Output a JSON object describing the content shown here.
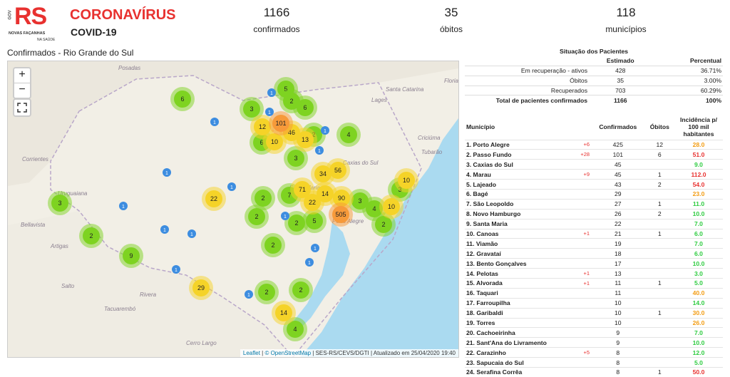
{
  "header": {
    "logo": {
      "gov": "GOV",
      "rs": "RS",
      "line1": "NOVAS FAÇANHAS",
      "line2": "NA SAÚDE"
    },
    "title": "CORONAVÍRUS",
    "subtitle": "COVID-19",
    "stats": [
      {
        "value": "1166",
        "label": "confirmados"
      },
      {
        "value": "35",
        "label": "óbitos"
      },
      {
        "value": "118",
        "label": "municípios"
      }
    ]
  },
  "map": {
    "title": "Confirmados - Rio Grande do Sul",
    "zoom_in": "+",
    "zoom_out": "−",
    "places": [
      "Posadas",
      "Santa Catarina",
      "Lages",
      "Florianópolis",
      "Criciúma",
      "Tubarão",
      "Corrientes",
      "Uruguaiana",
      "Bellavista",
      "Artigas",
      "Salto",
      "Rivera",
      "Tacuarembó",
      "Cerro Largo",
      "Caxias do Sul",
      "Santa Maria",
      "Porto Alegre"
    ],
    "clusters": [
      "6",
      "5",
      "2",
      "6",
      "3",
      "4",
      "2",
      "6",
      "3",
      "3",
      "2",
      "7",
      "2",
      "2",
      "5",
      "3",
      "4",
      "2",
      "3",
      "2",
      "9",
      "2",
      "2",
      "2",
      "4",
      "12",
      "46",
      "10",
      "13",
      "34",
      "56",
      "22",
      "71",
      "14",
      "90",
      "22",
      "10",
      "10",
      "29",
      "14",
      "101",
      "505",
      "1",
      "1",
      "1",
      "1",
      "1",
      "1",
      "1",
      "1",
      "1",
      "1",
      "1",
      "1",
      "1",
      "1",
      "1"
    ],
    "attribution": {
      "leaflet": "Leaflet",
      "osm": "© OpenStreetMap",
      "source": "SES-RS/CEVS/DGTI | Atualizado em 25/04/2020 19:40"
    }
  },
  "summary": {
    "title": "Situação dos Pacientes",
    "columns": [
      "Estimado",
      "Percentual"
    ],
    "rows": [
      [
        "Em recuperação - ativos",
        "428",
        "36.71%"
      ],
      [
        "Óbitos",
        "35",
        "3.00%"
      ],
      [
        "Recuperados",
        "703",
        "60.29%"
      ],
      [
        "Total de pacientes confirmados",
        "1166",
        "100%"
      ]
    ]
  },
  "municipalities": {
    "columns": [
      "Município",
      "Confirmados",
      "Óbitos",
      "Incidência p/ 100 mil habitantes"
    ],
    "rows": [
      {
        "name": "1. Porto Alegre",
        "new": "+6",
        "confirmed": "425",
        "deaths": "12",
        "incidence": "28.0",
        "color": "#f39c12"
      },
      {
        "name": "2. Passo Fundo",
        "new": "+28",
        "confirmed": "101",
        "deaths": "6",
        "incidence": "51.0",
        "color": "#e8312f"
      },
      {
        "name": "3. Caxias do Sul",
        "confirmed": "45",
        "incidence": "9.0",
        "color": "#2ecc40"
      },
      {
        "name": "4. Marau",
        "new": "+9",
        "confirmed": "45",
        "deaths": "1",
        "incidence": "112.0",
        "color": "#e8312f"
      },
      {
        "name": "5. Lajeado",
        "confirmed": "43",
        "deaths": "2",
        "incidence": "54.0",
        "color": "#e8312f"
      },
      {
        "name": "6. Bagé",
        "confirmed": "29",
        "incidence": "23.0",
        "color": "#f39c12"
      },
      {
        "name": "7. São Leopoldo",
        "confirmed": "27",
        "deaths": "1",
        "incidence": "11.0",
        "color": "#2ecc40"
      },
      {
        "name": "8. Novo Hamburgo",
        "confirmed": "26",
        "deaths": "2",
        "incidence": "10.0",
        "color": "#2ecc40"
      },
      {
        "name": "9. Santa Maria",
        "confirmed": "22",
        "incidence": "7.0",
        "color": "#2ecc40"
      },
      {
        "name": "10. Canoas",
        "new": "+1",
        "confirmed": "21",
        "deaths": "1",
        "incidence": "6.0",
        "color": "#2ecc40"
      },
      {
        "name": "11. Viamão",
        "confirmed": "19",
        "incidence": "7.0",
        "color": "#2ecc40"
      },
      {
        "name": "12. Gravataí",
        "confirmed": "18",
        "incidence": "6.0",
        "color": "#2ecc40"
      },
      {
        "name": "13. Bento Gonçalves",
        "confirmed": "17",
        "incidence": "10.0",
        "color": "#2ecc40"
      },
      {
        "name": "14. Pelotas",
        "new": "+1",
        "confirmed": "13",
        "incidence": "3.0",
        "color": "#2ecc40"
      },
      {
        "name": "15. Alvorada",
        "new": "+1",
        "confirmed": "11",
        "deaths": "1",
        "incidence": "5.0",
        "color": "#2ecc40"
      },
      {
        "name": "16. Taquari",
        "confirmed": "11",
        "incidence": "40.0",
        "color": "#f39c12"
      },
      {
        "name": "17. Farroupilha",
        "confirmed": "10",
        "incidence": "14.0",
        "color": "#2ecc40"
      },
      {
        "name": "18. Garibaldi",
        "confirmed": "10",
        "deaths": "1",
        "incidence": "30.0",
        "color": "#f39c12"
      },
      {
        "name": "19. Torres",
        "confirmed": "10",
        "incidence": "26.0",
        "color": "#f39c12"
      },
      {
        "name": "20. Cachoeirinha",
        "confirmed": "9",
        "incidence": "7.0",
        "color": "#2ecc40"
      },
      {
        "name": "21. Sant'Ana do Livramento",
        "confirmed": "9",
        "incidence": "10.0",
        "color": "#2ecc40"
      },
      {
        "name": "22. Carazinho",
        "new": "+5",
        "confirmed": "8",
        "incidence": "12.0",
        "color": "#2ecc40"
      },
      {
        "name": "23. Sapucaia do Sul",
        "confirmed": "8",
        "incidence": "5.0",
        "color": "#2ecc40"
      },
      {
        "name": "24. Serafina Corrêa",
        "confirmed": "8",
        "deaths": "1",
        "incidence": "50.0",
        "color": "#e8312f"
      }
    ]
  }
}
